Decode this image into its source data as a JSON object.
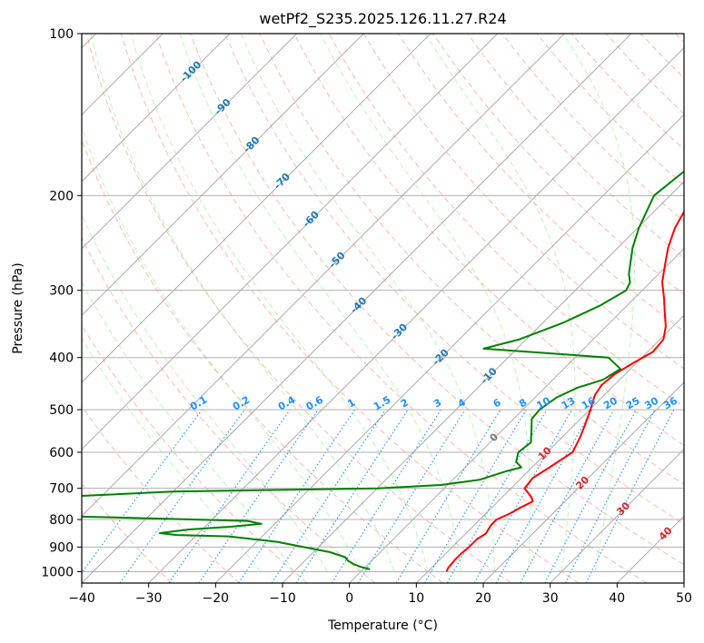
{
  "chart_data": {
    "type": "line",
    "title": "wetPf2_S235.2025.126.11.27.R24",
    "xlabel": "Temperature (°C)",
    "ylabel": "Pressure (hPa)",
    "xlim": [
      -40,
      50
    ],
    "ylim": [
      1050,
      100
    ],
    "y_scale": "log",
    "x_ticks": [
      -40,
      -30,
      -20,
      -10,
      0,
      10,
      20,
      30,
      40,
      50
    ],
    "y_ticks": [
      100,
      200,
      300,
      400,
      500,
      600,
      700,
      800,
      900,
      1000
    ],
    "grid": true,
    "colors": {
      "temperature": "#ff0000",
      "dewpoint": "#008000",
      "skewT_isotherm": "#999999",
      "dry_adiabat": "#fa8072",
      "moist_adiabat": "#90ee90",
      "mixing_ratio": "#1e90ff",
      "wetbulb_label": "#1f77b4",
      "dry_label": "#d62728",
      "grid": "#b0b0b0"
    },
    "skew_labels": [
      "-100",
      "-90",
      "-80",
      "-70",
      "-60",
      "-50",
      "-40",
      "-30",
      "-20",
      "-10",
      "0",
      "10",
      "20",
      "30",
      "40"
    ],
    "mixing_ratio_labels": [
      "0.1",
      "0.2",
      "0.4",
      "0.6",
      "1",
      "1.5",
      "2",
      "3",
      "4",
      "6",
      "8",
      "10",
      "13",
      "16",
      "20",
      "25",
      "30",
      "36"
    ],
    "series": [
      {
        "key": "temperature",
        "p": [
          1000,
          985,
          950,
          925,
          900,
          870,
          850,
          820,
          800,
          780,
          760,
          740,
          725,
          700,
          670,
          640,
          600,
          560,
          520,
          500,
          470,
          450,
          430,
          410,
          390,
          370,
          350,
          330,
          310,
          290,
          270,
          250,
          230,
          210,
          200,
          190,
          180,
          170,
          160,
          150,
          145,
          140,
          137,
          133,
          130,
          125,
          120,
          115,
          110,
          105,
          100
        ],
        "t": [
          12.8,
          12.5,
          12.3,
          12.3,
          12.5,
          12.5,
          13.0,
          12.5,
          12.5,
          13.6,
          14.3,
          15.2,
          14.2,
          12.0,
          11.7,
          12.6,
          13.8,
          12.6,
          11.0,
          10.1,
          8.6,
          8.1,
          8.4,
          9.5,
          10.8,
          10.5,
          8.9,
          6.7,
          4.4,
          1.8,
          -0.3,
          -2.5,
          -4.4,
          -5.8,
          -6.6,
          -6.8,
          -5.9,
          -5.3,
          -5.6,
          -6.2,
          -5.6,
          -3.5,
          0.1,
          3.3,
          7.7,
          10.3,
          11.8,
          13.8,
          15.8,
          18.8,
          22.2
        ]
      },
      {
        "key": "dewpoint",
        "p": [
          990,
          980,
          970,
          955,
          940,
          920,
          880,
          860,
          855,
          848,
          835,
          825,
          815,
          805,
          800,
          790,
          760,
          730,
          710,
          700,
          690,
          675,
          650,
          640,
          625,
          600,
          575,
          545,
          520,
          500,
          475,
          455,
          440,
          420,
          400,
          385,
          370,
          345,
          320,
          300,
          290,
          280,
          250,
          230,
          200,
          180,
          170,
          160,
          150,
          140,
          133,
          125,
          117,
          112,
          105,
          100
        ],
        "t": [
          1.0,
          -0.7,
          -2.0,
          -3.5,
          -4.5,
          -7.5,
          -17.0,
          -25.0,
          -33.0,
          -35.8,
          -32.0,
          -26.0,
          -22.0,
          -24.5,
          -33.0,
          -50.0,
          -60.0,
          -60.0,
          -40.0,
          -10.0,
          -1.0,
          4.0,
          6.8,
          8.4,
          6.8,
          5.7,
          6.1,
          4.3,
          2.7,
          2.5,
          3.2,
          4.9,
          7.5,
          8.5,
          5.0,
          -15.0,
          -11.0,
          -7.0,
          -4.0,
          -2.4,
          -3.0,
          -4.4,
          -7.8,
          -9.8,
          -12.4,
          -11.5,
          -10.0,
          -9.0,
          -9.5,
          -8.7,
          -11.0,
          -11.8,
          -10.7,
          -8.8,
          -6.0,
          -3.0
        ]
      }
    ]
  }
}
